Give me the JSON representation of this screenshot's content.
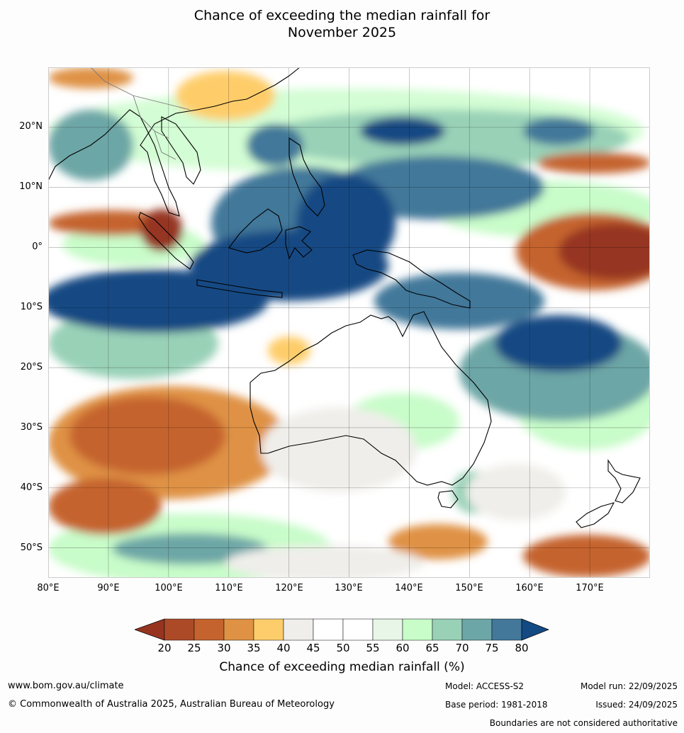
{
  "title": {
    "line1": "Chance of exceeding the median rainfall for",
    "line2": "November 2025"
  },
  "map": {
    "lat_labels": [
      "20°N",
      "10°N",
      "0°",
      "10°S",
      "20°S",
      "30°S",
      "40°S",
      "50°S"
    ],
    "lon_labels": [
      "80°E",
      "90°E",
      "100°E",
      "110°E",
      "120°E",
      "130°E",
      "140°E",
      "150°E",
      "160°E",
      "170°E"
    ],
    "extent": {
      "lon_min": 80,
      "lon_max": 180,
      "lat_min": -55,
      "lat_max": 30
    }
  },
  "colorbar": {
    "ticks": [
      "20",
      "25",
      "30",
      "35",
      "40",
      "45",
      "50",
      "55",
      "60",
      "65",
      "70",
      "75",
      "80"
    ],
    "colors": [
      "#963420",
      "#ac4a28",
      "#c5632e",
      "#df9244",
      "#fecd6b",
      "#efeeea",
      "#ffffff",
      "#ffffff",
      "#e8f6e8",
      "#c8fcc9",
      "#99d1b7",
      "#6da6a6",
      "#43789a",
      "#134a83"
    ],
    "label": "Chance of exceeding median rainfall (%)"
  },
  "footer": {
    "url": "www.bom.gov.au/climate",
    "copyright": "© Commonwealth of Australia 2025, Australian Bureau of Meteorology",
    "model": "Model: ACCESS-S2",
    "base_period": "Base period: 1981-2018",
    "model_run": "Model run: 22/09/2025",
    "issued": "Issued: 24/09/2025",
    "disclaimer": "Boundaries are not considered authoritative"
  }
}
